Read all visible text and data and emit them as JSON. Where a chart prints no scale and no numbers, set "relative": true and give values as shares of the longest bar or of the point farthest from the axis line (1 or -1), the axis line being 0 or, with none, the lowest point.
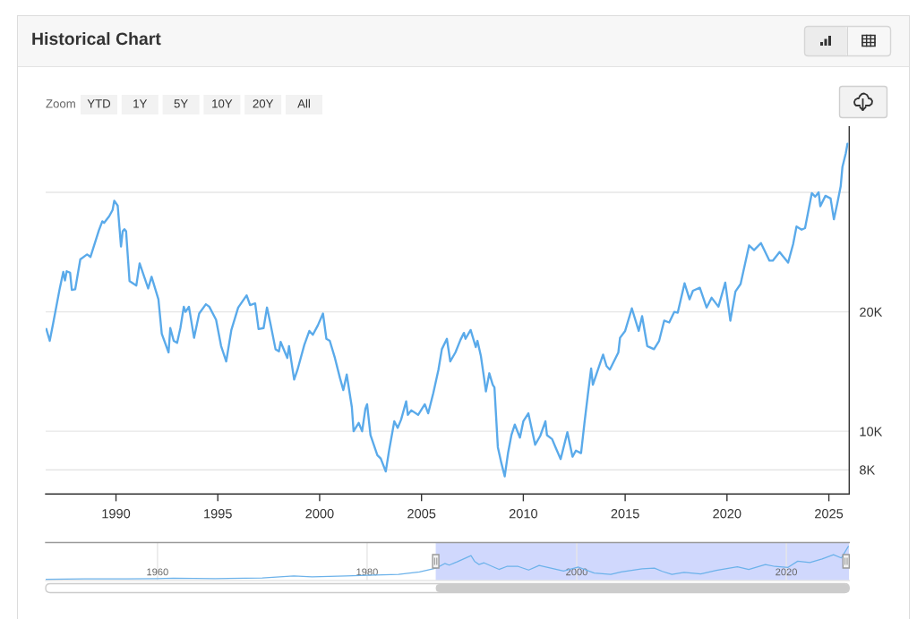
{
  "chart_data": [
    {
      "type": "line",
      "title": "Historical Chart",
      "annotations": [
        "Zoom",
        "YTD",
        "1Y",
        "5Y",
        "10Y",
        "20Y",
        "All"
      ],
      "x": [
        "1986-08",
        "1986-10",
        "1986-12",
        "1987-04",
        "1987-06",
        "1987-07",
        "1987-08",
        "1987-10",
        "1987-11",
        "1988-01",
        "1988-04",
        "1988-08",
        "1988-10",
        "1989-03",
        "1989-05",
        "1989-06",
        "1989-09",
        "1989-11",
        "1989-12",
        "1990-02",
        "1990-04",
        "1990-05",
        "1990-06",
        "1990-07",
        "1990-09",
        "1991-01",
        "1991-03",
        "1991-08",
        "1991-10",
        "1992-02",
        "1992-04",
        "1992-08",
        "1992-09",
        "1992-11",
        "1993-01",
        "1993-03",
        "1993-05",
        "1993-06",
        "1993-08",
        "1993-11",
        "1994-02",
        "1994-06",
        "1994-08",
        "1994-12",
        "1995-03",
        "1995-06",
        "1995-09",
        "1996-01",
        "1996-06",
        "1996-08",
        "1996-11",
        "1997-01",
        "1997-04",
        "1997-06",
        "1997-08",
        "1997-11",
        "1998-01",
        "1998-02",
        "1998-06",
        "1998-07",
        "1998-10",
        "1998-12",
        "1999-04",
        "1999-07",
        "1999-09",
        "1999-12",
        "2000-03",
        "2000-05",
        "2000-07",
        "2000-10",
        "2001-01",
        "2001-03",
        "2001-05",
        "2001-08",
        "2001-09",
        "2001-12",
        "2002-02",
        "2002-04",
        "2002-05",
        "2002-07",
        "2002-11",
        "2003-01",
        "2003-04",
        "2003-06",
        "2003-09",
        "2003-11",
        "2004-01",
        "2004-04",
        "2004-05",
        "2004-07",
        "2004-11",
        "2005-03",
        "2005-05",
        "2005-08",
        "2005-11",
        "2006-01",
        "2006-04",
        "2006-06",
        "2006-09",
        "2006-12",
        "2007-02",
        "2007-03",
        "2007-06",
        "2007-09",
        "2007-10",
        "2007-12",
        "2008-02",
        "2008-03",
        "2008-05",
        "2008-07",
        "2008-08",
        "2008-10",
        "2008-12",
        "2009-02",
        "2009-04",
        "2009-06",
        "2009-08",
        "2009-11",
        "2010-01",
        "2010-04",
        "2010-08",
        "2010-11",
        "2011-02",
        "2011-03",
        "2011-06",
        "2011-08",
        "2011-11",
        "2012-03",
        "2012-06",
        "2012-08",
        "2012-11",
        "2013-01",
        "2013-03",
        "2013-05",
        "2013-06",
        "2013-09",
        "2013-12",
        "2014-02",
        "2014-04",
        "2014-09",
        "2014-10",
        "2015-01",
        "2015-05",
        "2015-09",
        "2015-11",
        "2016-02",
        "2016-06",
        "2016-09",
        "2016-12",
        "2017-03",
        "2017-06",
        "2017-08",
        "2017-12",
        "2018-03",
        "2018-05",
        "2018-09",
        "2019-01",
        "2019-04",
        "2019-08",
        "2019-12",
        "2020-03",
        "2020-06",
        "2020-09",
        "2021-02",
        "2021-05",
        "2021-09",
        "2022-02",
        "2022-04",
        "2022-08",
        "2023-01",
        "2023-04",
        "2023-06",
        "2023-09",
        "2023-11",
        "2024-03",
        "2024-05",
        "2024-07",
        "2024-08",
        "2024-11",
        "2025-02",
        "2025-04",
        "2025-06",
        "2025-08",
        "2025-09",
        "2025-11",
        "2025-12"
      ],
      "series": [
        {
          "color": "#5aaaea",
          "values": [
            18100,
            16900,
            18700,
            23000,
            25200,
            24000,
            25300,
            25100,
            22700,
            22800,
            27100,
            27900,
            27500,
            32100,
            33800,
            33500,
            34800,
            36100,
            38100,
            37000,
            29200,
            31900,
            32300,
            31900,
            23900,
            23300,
            26500,
            22900,
            24500,
            21500,
            17600,
            15800,
            18200,
            16900,
            16700,
            18200,
            20600,
            20000,
            20600,
            17200,
            19800,
            20900,
            20600,
            19100,
            16400,
            15000,
            18000,
            20500,
            22000,
            20800,
            21000,
            18100,
            18200,
            20500,
            18700,
            16100,
            15900,
            16800,
            15300,
            16400,
            13500,
            14300,
            16500,
            17900,
            17500,
            18500,
            19800,
            17100,
            16900,
            15300,
            13600,
            12700,
            13900,
            11500,
            10000,
            10500,
            10000,
            11400,
            11700,
            9780,
            8710,
            8540,
            7920,
            8970,
            10600,
            10200,
            10700,
            11900,
            11000,
            11300,
            11000,
            11700,
            11100,
            12500,
            14300,
            16100,
            17100,
            15000,
            15800,
            17000,
            17700,
            17100,
            18000,
            16300,
            16900,
            15500,
            13500,
            12600,
            14000,
            13100,
            12900,
            9120,
            8340,
            7700,
            8810,
            9780,
            10400,
            9640,
            10600,
            11100,
            9250,
            9740,
            10600,
            9780,
            9560,
            9120,
            8510,
            9950,
            8630,
            8940,
            8810,
            10500,
            12300,
            14400,
            13100,
            14300,
            15600,
            14600,
            14300,
            15800,
            17200,
            17900,
            20400,
            17900,
            19500,
            16400,
            16100,
            16900,
            19000,
            18800,
            20000,
            19900,
            23600,
            21500,
            22600,
            23000,
            20500,
            21700,
            20600,
            23700,
            19000,
            22500,
            23500,
            29400,
            28600,
            29800,
            26900,
            26900,
            28300,
            26600,
            29600,
            32800,
            32200,
            32500,
            39800,
            39000,
            40000,
            36900,
            39200,
            38600,
            34200,
            37500,
            41400,
            46300,
            50200,
            53000
          ]
        }
      ],
      "xlim": [
        "1986-07-20",
        "2026-01-01"
      ],
      "xticks": [
        "1990",
        "1995",
        "2000",
        "2005",
        "2010",
        "2015",
        "2020",
        "2025"
      ],
      "ylim": [
        6950,
        58500
      ],
      "yticks": [
        {
          "value": 8000,
          "label": "8K"
        },
        {
          "value": 10000,
          "label": "10K"
        },
        {
          "value": 20000,
          "label": "20K"
        },
        {
          "value": 40000,
          "label": null
        }
      ],
      "log": "y",
      "grid": "y"
    },
    {
      "type": "line",
      "relative": true,
      "x": [
        "1949-05",
        "1953-01",
        "1957-01",
        "1960-01",
        "1961-07",
        "1965-07",
        "1970-01",
        "1973-01",
        "1974-10",
        "1978-01",
        "1980-01",
        "1983-01",
        "1985-01",
        "1986-08",
        "1987-06",
        "1987-11",
        "1988-08",
        "1989-12",
        "1990-04",
        "1990-09",
        "1991-03",
        "1992-08",
        "1993-05",
        "1994-06",
        "1995-06",
        "1996-06",
        "1998-10",
        "2000-03",
        "2001-09",
        "2003-04",
        "2004-04",
        "2006-04",
        "2007-06",
        "2008-03",
        "2009-02",
        "2010-04",
        "2011-11",
        "2013-05",
        "2015-05",
        "2016-06",
        "2018-01",
        "2018-12",
        "2020-03",
        "2021-02",
        "2022-04",
        "2023-06",
        "2024-07",
        "2025-04",
        "2025-12"
      ],
      "series": [
        {
          "color": "#6cb2ea",
          "values": [
            0,
            0.01,
            0.01,
            0.02,
            0.03,
            0.02,
            0.04,
            0.1,
            0.07,
            0.1,
            0.12,
            0.15,
            0.22,
            0.34,
            0.48,
            0.43,
            0.53,
            0.72,
            0.55,
            0.45,
            0.5,
            0.3,
            0.39,
            0.39,
            0.28,
            0.42,
            0.25,
            0.37,
            0.19,
            0.15,
            0.22,
            0.32,
            0.34,
            0.24,
            0.15,
            0.21,
            0.16,
            0.27,
            0.38,
            0.3,
            0.45,
            0.39,
            0.36,
            0.55,
            0.51,
            0.62,
            0.75,
            0.65,
            1
          ]
        }
      ],
      "xlim": [
        "1949-05",
        "2026-01"
      ],
      "xticks": [
        "1960",
        "1980",
        "2000",
        "2020"
      ],
      "grid": "x",
      "tick_labels": "x",
      "bands": [
        {
          "axis": "x",
          "from": "1986-07-20",
          "to": "2026-01-01",
          "color": "#d0d8fd"
        }
      ]
    }
  ]
}
